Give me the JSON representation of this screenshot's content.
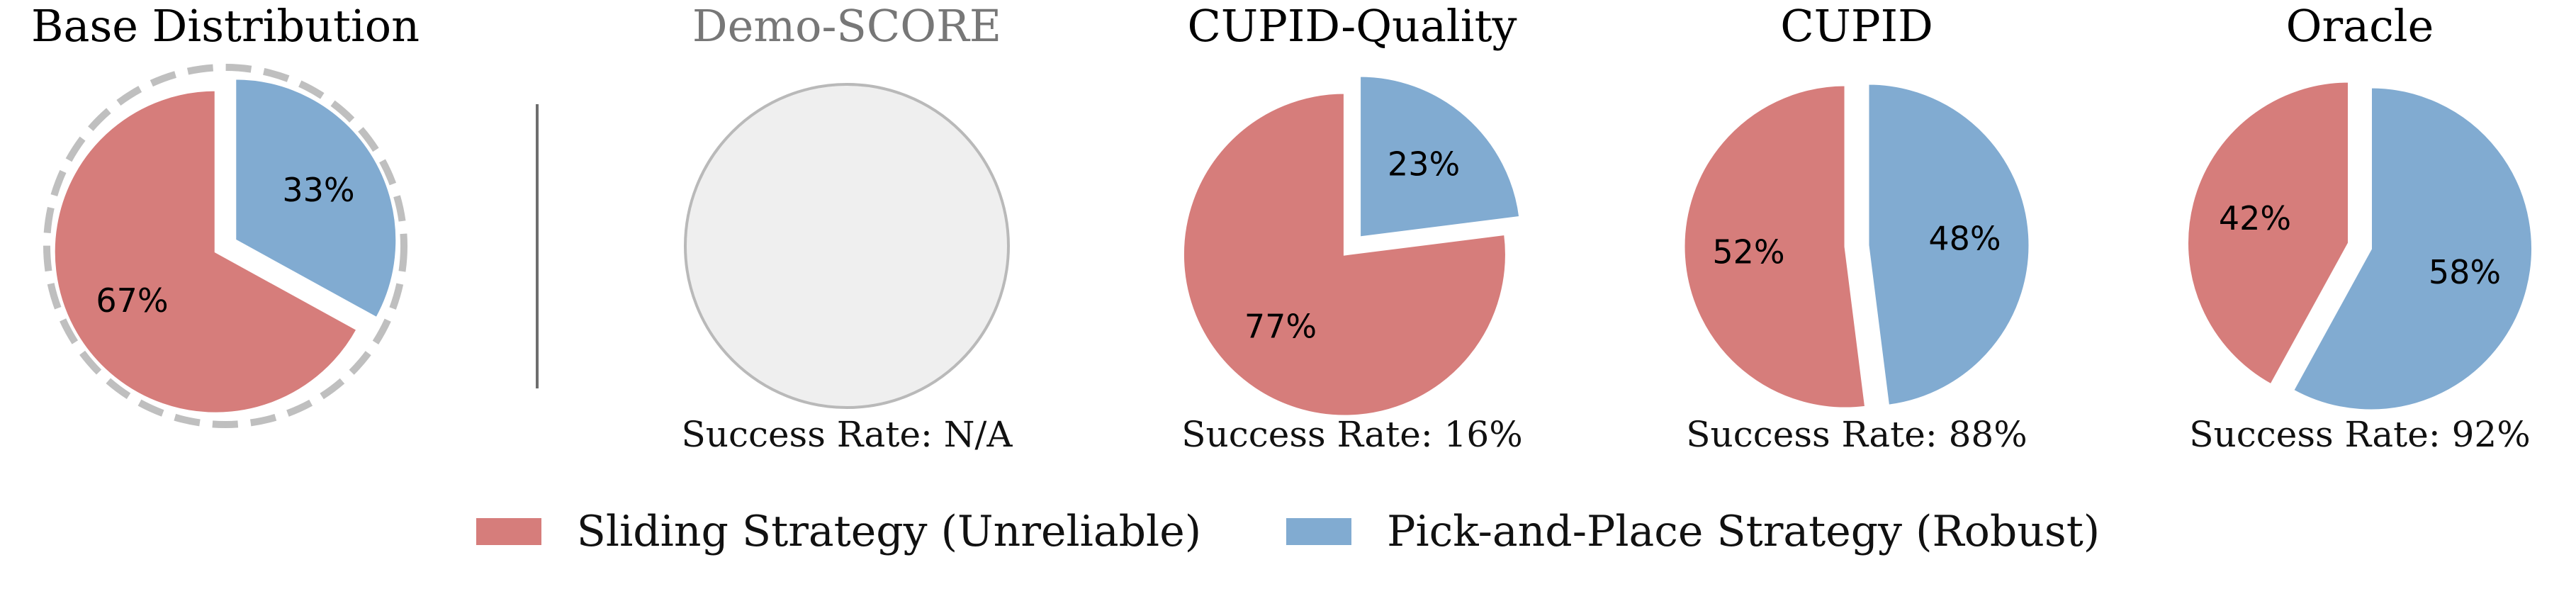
{
  "colors": {
    "sliding": "#d67d7b",
    "pickplace": "#81abd1",
    "empty_fill": "#efefef",
    "empty_stroke": "#b9b9b9",
    "dashed_ring": "#bfbfbf",
    "divider": "#6e6e6e",
    "muted_title": "#777777"
  },
  "legend": {
    "items": [
      {
        "label": "Sliding Strategy (Unreliable)",
        "color": "#d67d7b"
      },
      {
        "label": "Pick-and-Place Strategy (Robust)",
        "color": "#81abd1"
      }
    ]
  },
  "chart_data": [
    {
      "type": "pie",
      "title": "Base Distribution",
      "slices": [
        {
          "label": "Sliding Strategy (Unreliable)",
          "value": 67,
          "text": "67%"
        },
        {
          "label": "Pick-and-Place Strategy (Robust)",
          "value": 33,
          "text": "33%"
        }
      ],
      "subtitle": "",
      "dashed_outline": true
    },
    {
      "type": "pie",
      "title": "Demo-SCORE",
      "slices": [],
      "subtitle": "Success Rate: N/A",
      "empty": true
    },
    {
      "type": "pie",
      "title": "CUPID-Quality",
      "slices": [
        {
          "label": "Sliding Strategy (Unreliable)",
          "value": 77,
          "text": "77%"
        },
        {
          "label": "Pick-and-Place Strategy (Robust)",
          "value": 23,
          "text": "23%"
        }
      ],
      "subtitle": "Success Rate: 16%"
    },
    {
      "type": "pie",
      "title": "CUPID",
      "slices": [
        {
          "label": "Sliding Strategy (Unreliable)",
          "value": 52,
          "text": "52%"
        },
        {
          "label": "Pick-and-Place Strategy (Robust)",
          "value": 48,
          "text": "48%"
        }
      ],
      "subtitle": "Success Rate: 88%"
    },
    {
      "type": "pie",
      "title": "Oracle",
      "slices": [
        {
          "label": "Sliding Strategy (Unreliable)",
          "value": 42,
          "text": "42%"
        },
        {
          "label": "Pick-and-Place Strategy (Robust)",
          "value": 58,
          "text": "58%"
        }
      ],
      "subtitle": "Success Rate: 92%"
    }
  ]
}
